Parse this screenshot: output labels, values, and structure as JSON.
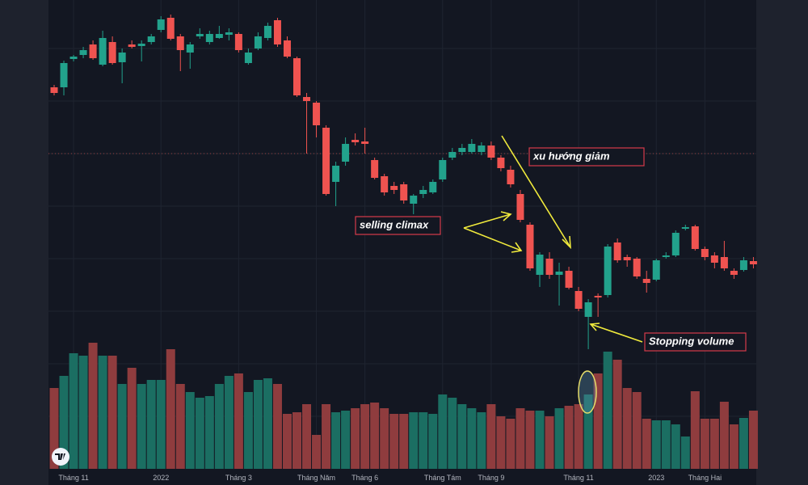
{
  "chart_data": {
    "type": "candlestick",
    "categories": [
      null,
      null,
      "Tháng 11",
      null,
      null,
      null,
      null,
      null,
      null,
      null,
      null,
      "2022",
      null,
      null,
      null,
      null,
      null,
      null,
      null,
      "Tháng 3",
      null,
      null,
      null,
      null,
      null,
      null,
      null,
      "Tháng Năm",
      null,
      null,
      null,
      null,
      "Tháng 6",
      null,
      null,
      null,
      null,
      null,
      null,
      null,
      "Tháng Tám",
      null,
      null,
      null,
      null,
      "Tháng 9",
      null,
      null,
      null,
      null,
      null,
      null,
      null,
      null,
      "Tháng 11",
      null,
      null,
      null,
      null,
      null,
      null,
      null,
      "2023",
      null,
      null,
      null,
      null,
      "Tháng Hai",
      null,
      null,
      null,
      null,
      null
    ],
    "open": [
      342,
      342,
      377,
      382,
      395,
      370,
      398,
      373,
      395,
      393,
      398,
      413,
      428,
      405,
      385,
      405,
      398,
      403,
      407,
      408,
      372,
      390,
      403,
      425,
      400,
      378,
      330,
      323,
      292,
      225,
      250,
      277,
      275,
      252,
      232,
      220,
      222,
      198,
      210,
      212,
      228,
      255,
      262,
      262,
      262,
      270,
      255,
      240,
      210,
      172,
      110,
      130,
      110,
      115,
      90,
      58,
      84,
      85,
      150,
      132,
      130,
      105,
      104,
      132,
      134,
      167,
      170,
      142,
      134,
      132,
      115,
      116,
      127
    ],
    "high": [
      345,
      375,
      382,
      392,
      400,
      412,
      405,
      390,
      400,
      400,
      408,
      430,
      432,
      408,
      398,
      415,
      412,
      418,
      415,
      410,
      390,
      410,
      422,
      428,
      405,
      380,
      335,
      325,
      295,
      250,
      280,
      285,
      292,
      255,
      235,
      225,
      225,
      210,
      220,
      228,
      255,
      267,
      272,
      278,
      274,
      275,
      258,
      245,
      215,
      175,
      138,
      138,
      125,
      120,
      95,
      80,
      87,
      148,
      155,
      135,
      132,
      115,
      130,
      138,
      165,
      172,
      172,
      145,
      138,
      152,
      118,
      132,
      132
    ],
    "low": [
      332,
      332,
      374,
      378,
      376,
      368,
      370,
      347,
      390,
      374,
      395,
      410,
      400,
      362,
      365,
      402,
      395,
      402,
      400,
      385,
      370,
      388,
      400,
      392,
      378,
      330,
      260,
      280,
      208,
      195,
      245,
      270,
      260,
      228,
      208,
      210,
      198,
      185,
      205,
      210,
      225,
      252,
      258,
      260,
      258,
      252,
      238,
      218,
      175,
      115,
      95,
      105,
      72,
      92,
      65,
      18,
      58,
      82,
      125,
      120,
      105,
      88,
      102,
      130,
      132,
      165,
      140,
      128,
      118,
      115,
      105,
      114,
      118
    ],
    "close": [
      335,
      372,
      380,
      388,
      378,
      403,
      372,
      385,
      392,
      396,
      405,
      426,
      402,
      388,
      395,
      408,
      408,
      408,
      410,
      388,
      385,
      405,
      418,
      395,
      380,
      332,
      325,
      295,
      210,
      245,
      272,
      274,
      272,
      230,
      212,
      215,
      202,
      208,
      215,
      225,
      252,
      262,
      267,
      272,
      270,
      255,
      242,
      222,
      178,
      118,
      135,
      110,
      114,
      94,
      68,
      76,
      82,
      145,
      128,
      128,
      108,
      100,
      128,
      134,
      162,
      169,
      142,
      132,
      125,
      118,
      110,
      128,
      123
    ],
    "volume": [
      100,
      115,
      143,
      140,
      156,
      140,
      140,
      105,
      125,
      105,
      110,
      110,
      148,
      105,
      95,
      88,
      90,
      105,
      115,
      118,
      95,
      110,
      112,
      105,
      68,
      70,
      80,
      42,
      80,
      70,
      72,
      75,
      80,
      82,
      75,
      68,
      68,
      70,
      70,
      68,
      92,
      88,
      80,
      75,
      70,
      80,
      65,
      62,
      75,
      72,
      72,
      65,
      75,
      78,
      80,
      92,
      118,
      145,
      135,
      100,
      95,
      62,
      60,
      60,
      55,
      40,
      96,
      62,
      62,
      83,
      55,
      63,
      72
    ],
    "ylim": [
      0,
      450
    ],
    "vlim": [
      0,
      200
    ],
    "price_line": 260,
    "up_color": "#22a28c",
    "down_color": "#ef5350",
    "volume_up_color": "#1b6e62",
    "volume_down_color": "#8f3c3e",
    "annotations": [
      "xu hướng giảm",
      "selling climax",
      "Stopping volume"
    ]
  }
}
